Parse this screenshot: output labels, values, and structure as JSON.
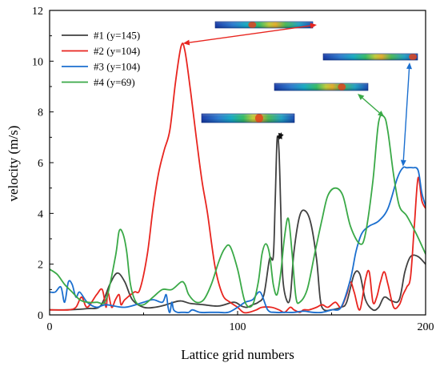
{
  "chart_data": {
    "type": "line",
    "xlabel": "Lattice grid numbers",
    "ylabel": "velocity (m/s)",
    "xlim": [
      0,
      200
    ],
    "ylim": [
      0,
      12
    ],
    "xticks": [
      0,
      100,
      200
    ],
    "xticks_minor": [
      50,
      150
    ],
    "yticks": [
      0,
      2,
      4,
      6,
      8,
      10,
      12
    ],
    "yticks_minor": [
      1,
      3,
      5,
      7,
      9,
      11
    ],
    "grid": false,
    "legend_position": "top-left",
    "series": [
      {
        "name": "#1 (y=145)",
        "color": "#404040",
        "x": [
          0,
          10,
          20,
          27,
          32,
          36,
          40,
          44,
          50,
          56,
          62,
          66,
          70,
          75,
          82,
          90,
          98,
          102,
          105,
          108,
          111,
          114,
          117,
          119,
          120,
          121,
          122,
          123,
          124,
          126,
          128,
          130,
          133,
          136,
          139,
          142,
          144,
          146,
          150,
          155,
          158,
          162,
          165,
          168,
          172,
          175,
          178,
          182,
          186,
          189,
          192,
          196,
          200
        ],
        "y": [
          0.2,
          0.2,
          0.25,
          0.35,
          1.2,
          1.65,
          1.3,
          0.6,
          0.3,
          0.3,
          0.4,
          0.5,
          0.55,
          0.45,
          0.4,
          0.35,
          0.5,
          0.35,
          0.3,
          0.4,
          0.5,
          0.8,
          2.2,
          2.3,
          4.5,
          6.9,
          6.5,
          4.0,
          1.5,
          0.6,
          0.7,
          2.5,
          3.9,
          4.1,
          3.6,
          2.2,
          0.6,
          0.2,
          0.2,
          0.3,
          0.5,
          1.6,
          1.6,
          0.6,
          0.2,
          0.3,
          0.7,
          0.55,
          0.6,
          1.7,
          2.3,
          2.3,
          2.0
        ]
      },
      {
        "name": "#2 (y=104)",
        "color": "#e8251f",
        "x": [
          0,
          10,
          14,
          17,
          20,
          25,
          28,
          30,
          31,
          33,
          35,
          37,
          38,
          40,
          45,
          48,
          52,
          55,
          58,
          61,
          64,
          67,
          70,
          72,
          75,
          78,
          81,
          84,
          88,
          92,
          96,
          100,
          103,
          106,
          110,
          113,
          118,
          122,
          125,
          128,
          130,
          133,
          135,
          138,
          142,
          145,
          148,
          152,
          155,
          158,
          160,
          162,
          165,
          168,
          170,
          172,
          174,
          176,
          178,
          180,
          183,
          186,
          188,
          190,
          192,
          194,
          196,
          198,
          200
        ],
        "y": [
          0.2,
          0.2,
          0.3,
          0.7,
          0.3,
          0.8,
          1.0,
          0.3,
          0.9,
          0.3,
          0.6,
          0.8,
          0.4,
          0.6,
          0.9,
          1.0,
          2.4,
          4.2,
          5.6,
          6.5,
          7.3,
          9.2,
          10.6,
          10.4,
          8.8,
          7.0,
          5.3,
          4.0,
          1.9,
          0.8,
          0.5,
          0.3,
          0.1,
          0.1,
          0.2,
          0.3,
          0.3,
          0.2,
          0.1,
          0.3,
          0.2,
          0.1,
          0.2,
          0.2,
          0.3,
          0.4,
          0.3,
          0.5,
          0.3,
          0.8,
          1.3,
          0.9,
          0.2,
          1.4,
          1.7,
          0.5,
          0.7,
          1.3,
          1.7,
          1.2,
          0.3,
          0.4,
          0.8,
          1.1,
          1.5,
          3.5,
          5.4,
          4.5,
          4.2
        ]
      },
      {
        "name": "#3 (y=104)",
        "color": "#1b6fcf",
        "x": [
          0,
          3,
          6,
          8,
          10,
          12,
          14,
          16,
          20,
          25,
          30,
          40,
          50,
          55,
          60,
          62,
          63,
          64,
          65,
          66,
          68,
          70,
          72,
          74,
          76,
          80,
          85,
          90,
          95,
          100,
          104,
          108,
          112,
          116,
          120,
          125,
          130,
          135,
          140,
          145,
          150,
          155,
          160,
          163,
          166,
          170,
          175,
          180,
          185,
          188,
          190,
          193,
          196,
          198,
          200
        ],
        "y": [
          0.9,
          0.9,
          1.1,
          0.5,
          1.3,
          1.2,
          0.7,
          0.9,
          0.5,
          0.3,
          0.4,
          0.3,
          0.5,
          0.6,
          0.5,
          0.8,
          0.3,
          0.1,
          0.5,
          0.2,
          0.1,
          0.1,
          0.1,
          0.1,
          0.2,
          0.1,
          0.1,
          0.1,
          0.1,
          0.3,
          0.5,
          0.6,
          0.9,
          0.2,
          0.1,
          0.1,
          0.1,
          0.15,
          0.1,
          0.1,
          0.2,
          0.3,
          1.4,
          2.5,
          3.2,
          3.5,
          3.7,
          4.2,
          5.4,
          5.8,
          5.8,
          5.8,
          5.7,
          4.8,
          4.3
        ]
      },
      {
        "name": "#4 (y=69)",
        "color": "#3aa947",
        "x": [
          0,
          4,
          8,
          12,
          16,
          20,
          25,
          30,
          35,
          37,
          39,
          41,
          43,
          46,
          50,
          55,
          60,
          65,
          70,
          72,
          74,
          78,
          82,
          86,
          90,
          93,
          96,
          100,
          104,
          108,
          111,
          113,
          115,
          117,
          119,
          121,
          123,
          125,
          127,
          129,
          131,
          133,
          137,
          141,
          145,
          148,
          152,
          156,
          160,
          165,
          168,
          172,
          175,
          178,
          180,
          183,
          186,
          190,
          195,
          200
        ],
        "y": [
          1.8,
          1.6,
          1.2,
          0.9,
          0.6,
          0.5,
          0.5,
          0.6,
          2.3,
          3.3,
          3.2,
          2.5,
          1.2,
          0.5,
          0.4,
          0.7,
          1.0,
          1.0,
          1.3,
          1.2,
          0.8,
          0.5,
          0.6,
          1.2,
          2.1,
          2.6,
          2.7,
          1.8,
          0.5,
          0.4,
          1.3,
          2.4,
          2.8,
          2.4,
          1.2,
          0.8,
          1.7,
          3.1,
          3.8,
          2.4,
          0.7,
          0.5,
          1.0,
          2.4,
          3.8,
          4.7,
          5.0,
          4.7,
          3.5,
          2.8,
          3.2,
          5.3,
          7.6,
          7.8,
          7.2,
          5.5,
          4.3,
          3.9,
          3.2,
          2.4
        ]
      }
    ],
    "annotations": [
      {
        "target_series": "#1 (y=145)",
        "peak_x": 122,
        "peak_y": 6.9,
        "arrow_color": "#111111",
        "arrow_style": "double"
      },
      {
        "target_series": "#2 (y=104)",
        "peak_x": 71,
        "peak_y": 10.7,
        "arrow_color": "#e8251f",
        "arrow_style": "double"
      },
      {
        "target_series": "#3 (y=104)",
        "peak_x": 188,
        "peak_y": 5.85,
        "arrow_color": "#1b6fcf",
        "arrow_style": "double"
      },
      {
        "target_series": "#4 (y=69)",
        "peak_x": 178,
        "peak_y": 7.8,
        "arrow_color": "#3aa947",
        "arrow_style": "double"
      }
    ]
  }
}
